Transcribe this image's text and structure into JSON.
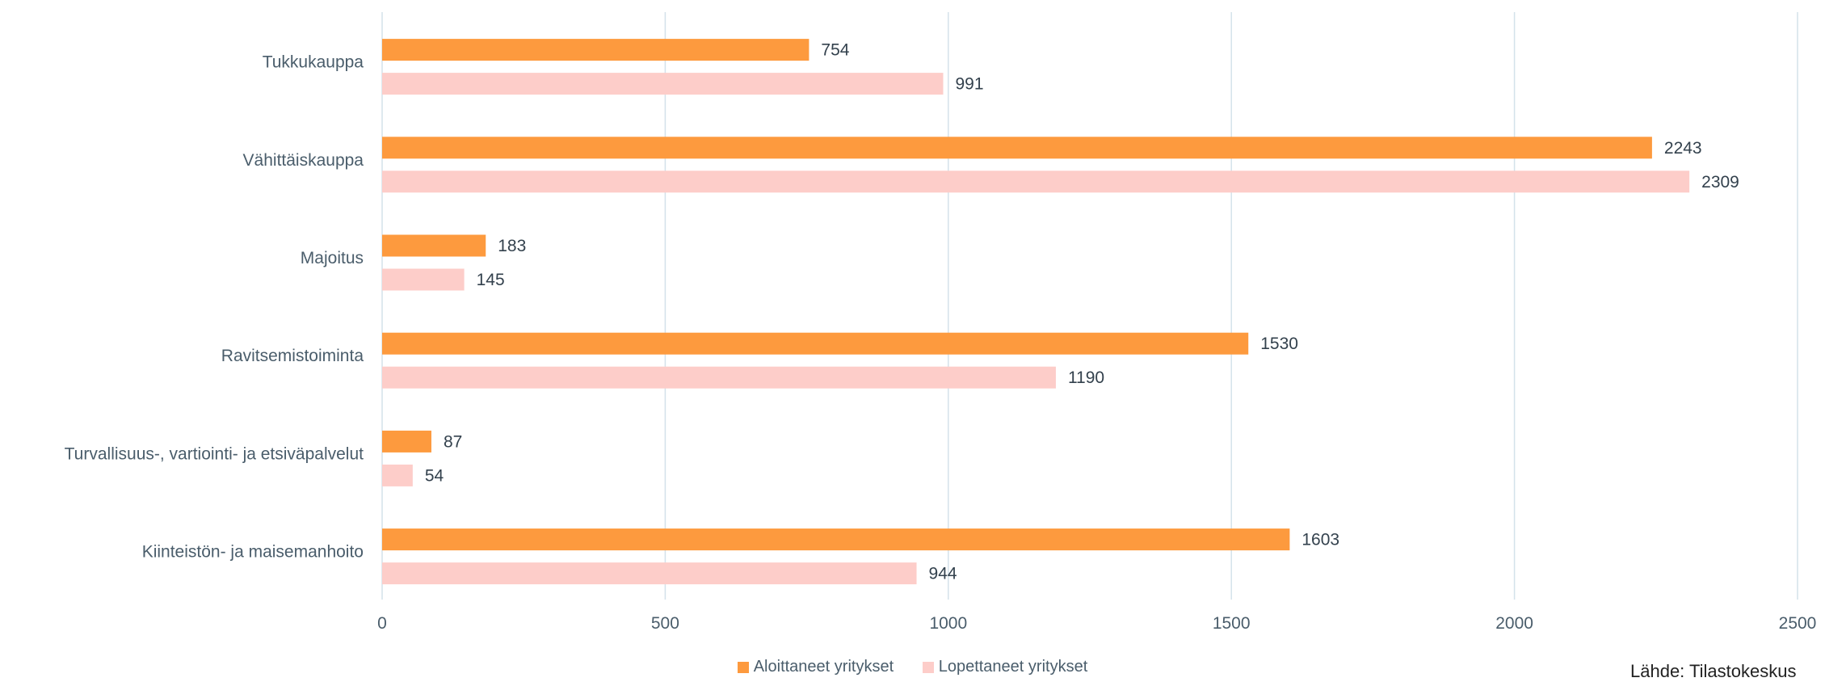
{
  "chart_data": {
    "type": "bar",
    "orientation": "horizontal",
    "categories": [
      "Tukkukauppa",
      "Vähittäiskauppa",
      "Majoitus",
      "Ravitsemistoiminta",
      "Turvallisuus-, vartiointi- ja etsiväpalvelut",
      "Kiinteistön- ja maisemanhoito"
    ],
    "series": [
      {
        "name": "Aloittaneet yritykset",
        "color": "#fd9a3e",
        "values": [
          754,
          2243,
          183,
          1530,
          87,
          1603
        ]
      },
      {
        "name": "Lopettaneet yritykset",
        "color": "#fdcdc9",
        "values": [
          991,
          2309,
          145,
          1190,
          54,
          944
        ]
      }
    ],
    "xlim": [
      0,
      2500
    ],
    "xticks": [
      0,
      500,
      1000,
      1500,
      2000,
      2500
    ],
    "grid": "vertical",
    "legend_position": "bottom",
    "gridline_color": "#d4e2ea"
  },
  "source_text": "Lähde: Tilastokeskus"
}
